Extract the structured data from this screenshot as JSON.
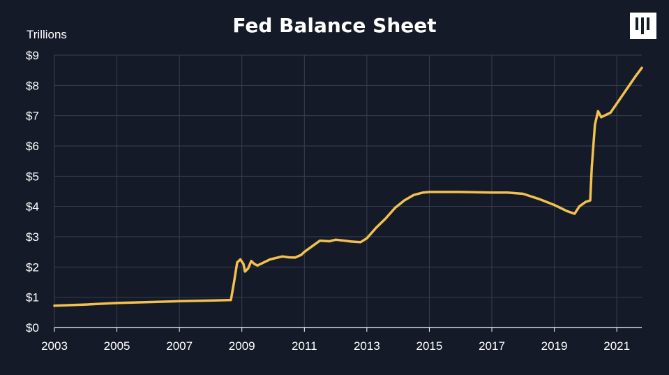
{
  "chart_data": {
    "type": "line",
    "title": "Fed Balance Sheet",
    "ylabel": "Trillions",
    "xlabel": "",
    "xlim": [
      2003,
      2021.8
    ],
    "ylim": [
      0,
      9
    ],
    "grid": true,
    "x_ticks": [
      "2003",
      "2005",
      "2007",
      "2009",
      "2011",
      "2013",
      "2015",
      "2017",
      "2019",
      "2021"
    ],
    "y_ticks": [
      "$0",
      "$1",
      "$2",
      "$3",
      "$4",
      "$5",
      "$6",
      "$7",
      "$8",
      "$9"
    ],
    "series": [
      {
        "color": "#f2c14e",
        "points": [
          [
            2003.0,
            0.72
          ],
          [
            2004.0,
            0.76
          ],
          [
            2005.0,
            0.81
          ],
          [
            2006.0,
            0.84
          ],
          [
            2007.0,
            0.87
          ],
          [
            2008.0,
            0.89
          ],
          [
            2008.65,
            0.91
          ],
          [
            2008.75,
            1.5
          ],
          [
            2008.85,
            2.15
          ],
          [
            2008.95,
            2.25
          ],
          [
            2009.05,
            2.1
          ],
          [
            2009.1,
            1.85
          ],
          [
            2009.2,
            1.95
          ],
          [
            2009.3,
            2.2
          ],
          [
            2009.4,
            2.1
          ],
          [
            2009.5,
            2.05
          ],
          [
            2009.7,
            2.15
          ],
          [
            2009.9,
            2.25
          ],
          [
            2010.1,
            2.3
          ],
          [
            2010.3,
            2.35
          ],
          [
            2010.5,
            2.32
          ],
          [
            2010.7,
            2.31
          ],
          [
            2010.9,
            2.4
          ],
          [
            2011.0,
            2.5
          ],
          [
            2011.2,
            2.65
          ],
          [
            2011.5,
            2.87
          ],
          [
            2011.8,
            2.85
          ],
          [
            2012.0,
            2.9
          ],
          [
            2012.2,
            2.88
          ],
          [
            2012.5,
            2.84
          ],
          [
            2012.8,
            2.82
          ],
          [
            2013.0,
            2.95
          ],
          [
            2013.3,
            3.3
          ],
          [
            2013.6,
            3.6
          ],
          [
            2013.9,
            3.95
          ],
          [
            2014.2,
            4.2
          ],
          [
            2014.5,
            4.38
          ],
          [
            2014.8,
            4.46
          ],
          [
            2015.0,
            4.48
          ],
          [
            2016.0,
            4.48
          ],
          [
            2017.0,
            4.46
          ],
          [
            2017.5,
            4.46
          ],
          [
            2018.0,
            4.42
          ],
          [
            2018.5,
            4.25
          ],
          [
            2019.0,
            4.05
          ],
          [
            2019.4,
            3.85
          ],
          [
            2019.65,
            3.76
          ],
          [
            2019.8,
            4.0
          ],
          [
            2020.0,
            4.15
          ],
          [
            2020.15,
            4.2
          ],
          [
            2020.2,
            5.3
          ],
          [
            2020.3,
            6.7
          ],
          [
            2020.4,
            7.15
          ],
          [
            2020.5,
            6.95
          ],
          [
            2020.8,
            7.1
          ],
          [
            2021.0,
            7.4
          ],
          [
            2021.3,
            7.85
          ],
          [
            2021.6,
            8.3
          ],
          [
            2021.8,
            8.58
          ]
        ]
      }
    ]
  }
}
